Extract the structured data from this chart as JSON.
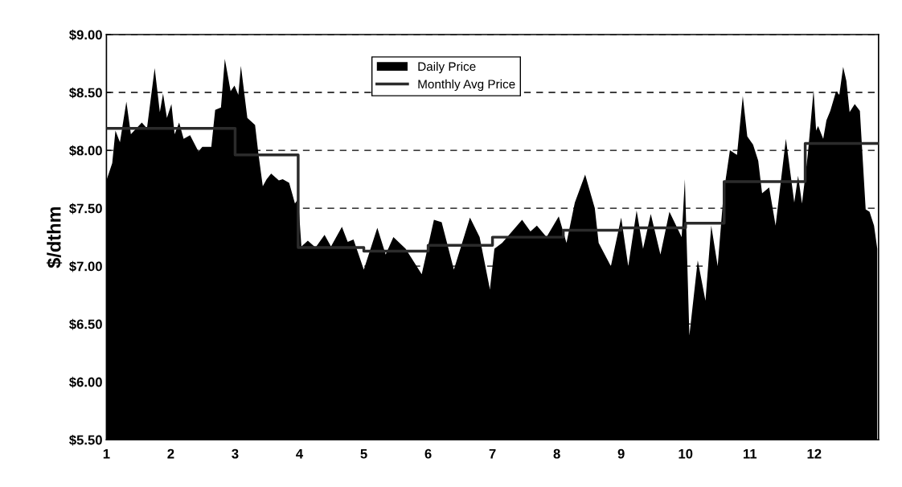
{
  "chart_data": {
    "type": "area",
    "ylabel": "$/dthm",
    "xlim": [
      1,
      13
    ],
    "xticks": [
      1,
      2,
      3,
      4,
      5,
      6,
      7,
      8,
      9,
      10,
      11,
      12
    ],
    "ylim": [
      5.5,
      9.0
    ],
    "yticks": [
      {
        "value": 5.5,
        "label": "$5.50"
      },
      {
        "value": 6.0,
        "label": "$6.00"
      },
      {
        "value": 6.5,
        "label": "$6.50"
      },
      {
        "value": 7.0,
        "label": "$7.00"
      },
      {
        "value": 7.5,
        "label": "$7.50"
      },
      {
        "value": 8.0,
        "label": "$8.00"
      },
      {
        "value": 8.5,
        "label": "$8.50"
      },
      {
        "value": 9.0,
        "label": "$9.00"
      }
    ],
    "grid": "y",
    "legend": "top",
    "series": [
      {
        "name": "Daily Price",
        "color": "#000000",
        "x": [
          1.0,
          1.09,
          1.14,
          1.21,
          1.31,
          1.38,
          1.55,
          1.63,
          1.75,
          1.83,
          1.88,
          1.94,
          2.01,
          2.06,
          2.13,
          2.2,
          2.3,
          2.43,
          2.49,
          2.63,
          2.69,
          2.78,
          2.84,
          2.93,
          2.99,
          3.05,
          3.09,
          3.19,
          3.31,
          3.36,
          3.43,
          3.49,
          3.56,
          3.68,
          3.74,
          3.84,
          3.93,
          3.98,
          4.03,
          4.13,
          4.25,
          4.39,
          4.49,
          4.66,
          4.75,
          4.84,
          5.0,
          5.21,
          5.34,
          5.46,
          5.65,
          5.9,
          6.09,
          6.21,
          6.4,
          6.65,
          6.8,
          6.96,
          7.03,
          7.15,
          7.46,
          7.59,
          7.69,
          7.84,
          8.03,
          8.15,
          8.28,
          8.44,
          8.59,
          8.65,
          8.84,
          9.0,
          9.11,
          9.24,
          9.34,
          9.46,
          9.61,
          9.75,
          9.94,
          9.99,
          10.06,
          10.19,
          10.31,
          10.4,
          10.5,
          10.59,
          10.69,
          10.8,
          10.89,
          10.96,
          11.05,
          11.13,
          11.19,
          11.3,
          11.4,
          11.56,
          11.69,
          11.75,
          11.81,
          11.9,
          11.99,
          12.03,
          12.06,
          12.14,
          12.19,
          12.25,
          12.34,
          12.39,
          12.45,
          12.5,
          12.55,
          12.63,
          12.71,
          12.8,
          12.86,
          12.93,
          12.98
        ],
        "values": [
          7.74,
          7.89,
          8.17,
          8.07,
          8.42,
          8.14,
          8.24,
          8.19,
          8.71,
          8.33,
          8.49,
          8.28,
          8.4,
          8.14,
          8.24,
          8.1,
          8.13,
          7.99,
          8.03,
          8.03,
          8.35,
          8.37,
          8.79,
          8.51,
          8.56,
          8.48,
          8.73,
          8.28,
          8.22,
          7.98,
          7.69,
          7.75,
          7.8,
          7.74,
          7.75,
          7.72,
          7.54,
          7.58,
          7.17,
          7.22,
          7.16,
          7.27,
          7.17,
          7.34,
          7.21,
          7.23,
          6.97,
          7.33,
          7.1,
          7.25,
          7.15,
          6.93,
          7.4,
          7.38,
          6.97,
          7.42,
          7.25,
          6.8,
          7.15,
          7.2,
          7.4,
          7.3,
          7.35,
          7.25,
          7.43,
          7.2,
          7.55,
          7.79,
          7.5,
          7.2,
          7.0,
          7.42,
          7.0,
          7.48,
          7.15,
          7.45,
          7.1,
          7.47,
          7.25,
          7.75,
          6.4,
          7.05,
          6.7,
          7.35,
          7.0,
          7.62,
          8.0,
          7.96,
          8.47,
          8.12,
          8.05,
          7.91,
          7.63,
          7.68,
          7.35,
          8.1,
          7.55,
          7.78,
          7.54,
          7.96,
          8.52,
          8.17,
          8.21,
          8.1,
          8.26,
          8.34,
          8.51,
          8.48,
          8.72,
          8.6,
          8.33,
          8.4,
          8.34,
          7.49,
          7.47,
          7.35,
          7.15
        ]
      },
      {
        "name": "Monthly Avg Price",
        "type": "step",
        "color": "#2b2b2b",
        "x": [
          1.0,
          3.0,
          3.98,
          5.0,
          6.0,
          7.0,
          8.1,
          9.0,
          10.0,
          10.6,
          11.86,
          13.0
        ],
        "values": [
          8.19,
          7.96,
          7.16,
          7.13,
          7.18,
          7.25,
          7.31,
          7.33,
          7.37,
          7.73,
          8.06,
          8.06
        ]
      }
    ]
  }
}
